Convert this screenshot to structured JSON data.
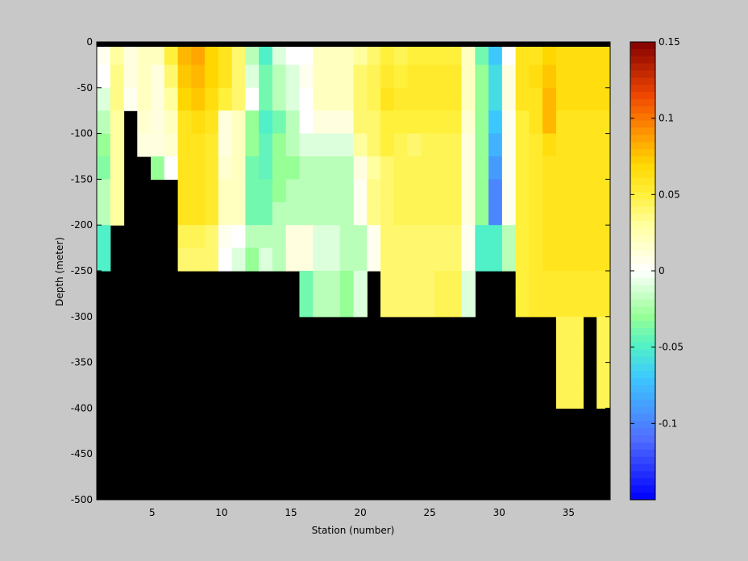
{
  "chart_data": {
    "type": "heatmap",
    "xlabel": "Station (number)",
    "ylabel": "Depth (meter)",
    "xlim": [
      1,
      38
    ],
    "ylim": [
      -500,
      0
    ],
    "x_ticks": [
      5,
      10,
      15,
      20,
      25,
      30,
      35
    ],
    "y_ticks": [
      0,
      -50,
      -100,
      -150,
      -200,
      -250,
      -300,
      -350,
      -400,
      -450,
      -500
    ],
    "colorbar": {
      "range": [
        -0.15,
        0.15
      ],
      "ticks": [
        0.15,
        0.1,
        0.05,
        0,
        -0.05,
        -0.1
      ],
      "tick_labels": [
        "0.15",
        "0.1",
        "0.05",
        "0",
        "-0.05",
        "-0.1"
      ],
      "colormap": "jet-like with white center"
    },
    "missing_color": "#000000",
    "stations": [
      1,
      2,
      3,
      4,
      5,
      6,
      7,
      8,
      9,
      10,
      11,
      12,
      13,
      14,
      15,
      16,
      17,
      18,
      19,
      20,
      21,
      22,
      23,
      24,
      25,
      26,
      27,
      28,
      29,
      30,
      31,
      32,
      33,
      34,
      35,
      36,
      37,
      38
    ],
    "depth_rows": [
      0,
      -25,
      -50,
      -75,
      -100,
      -125,
      -150,
      -175,
      -200,
      -225,
      -250,
      -275,
      -300,
      -325,
      -350,
      -375,
      -400,
      -425,
      -450,
      -475,
      -500
    ],
    "column_profiles": [
      {
        "station": 1,
        "bottom_depth": -250,
        "values": [
          0.005,
          0.0,
          -0.01,
          -0.02,
          -0.03,
          -0.035,
          -0.02,
          -0.02,
          -0.05,
          -0.05
        ]
      },
      {
        "station": 2,
        "bottom_depth": -200,
        "values": [
          0.03,
          0.035,
          0.035,
          0.03,
          0.03,
          0.03,
          0.03,
          0.03
        ]
      },
      {
        "station": 3,
        "bottom_depth": -75,
        "values": [
          0.01,
          0.01,
          0.005
        ]
      },
      {
        "station": 4,
        "bottom_depth": -125,
        "values": [
          0.02,
          0.02,
          0.02,
          0.015,
          0.01
        ]
      },
      {
        "station": 5,
        "bottom_depth": -150,
        "values": [
          0.02,
          0.01,
          0.01,
          0.01,
          0.01,
          -0.03
        ]
      },
      {
        "station": 6,
        "bottom_depth": -150,
        "values": [
          0.05,
          0.04,
          0.03,
          0.02,
          0.015,
          0.0
        ]
      },
      {
        "station": 7,
        "bottom_depth": -250,
        "values": [
          0.08,
          0.075,
          0.07,
          0.06,
          0.06,
          0.06,
          0.06,
          0.06,
          0.045,
          0.04
        ]
      },
      {
        "station": 8,
        "bottom_depth": -250,
        "values": [
          0.085,
          0.08,
          0.075,
          0.065,
          0.06,
          0.06,
          0.06,
          0.06,
          0.045,
          0.04
        ]
      },
      {
        "station": 9,
        "bottom_depth": -250,
        "values": [
          0.07,
          0.07,
          0.065,
          0.06,
          0.055,
          0.055,
          0.055,
          0.055,
          0.04,
          0.04
        ]
      },
      {
        "station": 10,
        "bottom_depth": -250,
        "values": [
          0.06,
          0.06,
          0.05,
          0.01,
          0.01,
          0.015,
          0.02,
          0.02,
          0.005,
          0.0
        ]
      },
      {
        "station": 11,
        "bottom_depth": -250,
        "values": [
          0.04,
          0.04,
          0.04,
          0.02,
          0.02,
          0.02,
          0.02,
          0.02,
          0.0,
          -0.01
        ]
      },
      {
        "station": 12,
        "bottom_depth": -250,
        "values": [
          -0.02,
          -0.01,
          0.0,
          -0.03,
          -0.03,
          -0.04,
          -0.04,
          -0.04,
          -0.02,
          -0.03
        ]
      },
      {
        "station": 13,
        "bottom_depth": -250,
        "values": [
          -0.05,
          -0.04,
          -0.04,
          -0.05,
          -0.045,
          -0.045,
          -0.04,
          -0.04,
          -0.02,
          -0.01
        ]
      },
      {
        "station": 14,
        "bottom_depth": -250,
        "values": [
          -0.01,
          -0.02,
          -0.02,
          -0.04,
          -0.03,
          -0.03,
          -0.03,
          -0.02,
          -0.02,
          -0.02
        ]
      },
      {
        "station": 15,
        "bottom_depth": -250,
        "values": [
          0.0,
          -0.01,
          -0.01,
          -0.02,
          -0.02,
          -0.03,
          -0.02,
          -0.02,
          0.01,
          0.01
        ]
      },
      {
        "station": 16,
        "bottom_depth": -300,
        "values": [
          0.0,
          0.005,
          0.0,
          0.0,
          -0.01,
          -0.02,
          -0.02,
          -0.02,
          0.01,
          0.01,
          -0.04,
          -0.04
        ]
      },
      {
        "station": 17,
        "bottom_depth": -300,
        "values": [
          0.02,
          0.02,
          0.02,
          0.01,
          -0.01,
          -0.02,
          -0.02,
          -0.02,
          -0.01,
          -0.01,
          -0.02,
          -0.02
        ]
      },
      {
        "station": 18,
        "bottom_depth": -300,
        "values": [
          0.02,
          0.02,
          0.02,
          0.01,
          -0.01,
          -0.02,
          -0.02,
          -0.02,
          -0.01,
          -0.01,
          -0.02,
          -0.02
        ]
      },
      {
        "station": 19,
        "bottom_depth": -300,
        "values": [
          0.02,
          0.02,
          0.02,
          0.01,
          -0.01,
          -0.02,
          -0.02,
          -0.02,
          -0.02,
          -0.02,
          -0.03,
          -0.03
        ]
      },
      {
        "station": 20,
        "bottom_depth": -300,
        "values": [
          0.03,
          0.04,
          0.04,
          0.04,
          0.03,
          0.01,
          0.005,
          0.005,
          -0.02,
          -0.02,
          -0.01,
          -0.01
        ]
      },
      {
        "station": 21,
        "bottom_depth": -250,
        "values": [
          0.04,
          0.045,
          0.045,
          0.04,
          0.04,
          0.03,
          0.035,
          0.035,
          0.005,
          0.005
        ]
      },
      {
        "station": 22,
        "bottom_depth": -300,
        "values": [
          0.05,
          0.055,
          0.06,
          0.05,
          0.05,
          0.04,
          0.04,
          0.04,
          0.04,
          0.04,
          0.04,
          0.04
        ]
      },
      {
        "station": 23,
        "bottom_depth": -300,
        "values": [
          0.045,
          0.05,
          0.055,
          0.05,
          0.045,
          0.045,
          0.045,
          0.045,
          0.04,
          0.04,
          0.04,
          0.04
        ]
      },
      {
        "station": 24,
        "bottom_depth": -300,
        "values": [
          0.05,
          0.055,
          0.055,
          0.05,
          0.04,
          0.045,
          0.045,
          0.045,
          0.04,
          0.04,
          0.04,
          0.04
        ]
      },
      {
        "station": 25,
        "bottom_depth": -300,
        "values": [
          0.05,
          0.055,
          0.055,
          0.05,
          0.045,
          0.045,
          0.045,
          0.045,
          0.04,
          0.04,
          0.04,
          0.04
        ]
      },
      {
        "station": 26,
        "bottom_depth": -300,
        "values": [
          0.05,
          0.055,
          0.055,
          0.05,
          0.045,
          0.045,
          0.045,
          0.045,
          0.04,
          0.04,
          0.045,
          0.045
        ]
      },
      {
        "station": 27,
        "bottom_depth": -300,
        "values": [
          0.05,
          0.055,
          0.055,
          0.05,
          0.045,
          0.045,
          0.045,
          0.045,
          0.04,
          0.04,
          0.045,
          0.045
        ]
      },
      {
        "station": 28,
        "bottom_depth": -300,
        "values": [
          0.02,
          0.02,
          0.02,
          0.015,
          0.01,
          0.01,
          0.01,
          0.01,
          0.005,
          0.005,
          -0.01,
          -0.01
        ]
      },
      {
        "station": 29,
        "bottom_depth": -250,
        "values": [
          -0.04,
          -0.03,
          -0.03,
          -0.03,
          -0.03,
          -0.03,
          -0.03,
          -0.03,
          -0.05,
          -0.05
        ]
      },
      {
        "station": 30,
        "bottom_depth": -250,
        "values": [
          -0.07,
          -0.06,
          -0.06,
          -0.07,
          -0.08,
          -0.09,
          -0.1,
          -0.1,
          -0.05,
          -0.05
        ]
      },
      {
        "station": 31,
        "bottom_depth": -250,
        "values": [
          0.0,
          0.01,
          0.01,
          0.005,
          0.005,
          0.005,
          0.005,
          0.005,
          -0.02,
          -0.02
        ]
      },
      {
        "station": 32,
        "bottom_depth": -300,
        "values": [
          0.06,
          0.06,
          0.06,
          0.05,
          0.05,
          0.05,
          0.05,
          0.05,
          0.05,
          0.05,
          0.05,
          0.05
        ]
      },
      {
        "station": 33,
        "bottom_depth": -300,
        "values": [
          0.06,
          0.065,
          0.06,
          0.06,
          0.055,
          0.055,
          0.055,
          0.055,
          0.055,
          0.055,
          0.055,
          0.055
        ]
      },
      {
        "station": 34,
        "bottom_depth": -300,
        "values": [
          0.07,
          0.075,
          0.08,
          0.08,
          0.065,
          0.06,
          0.06,
          0.06,
          0.06,
          0.06,
          0.055,
          0.055
        ]
      },
      {
        "station": 35,
        "bottom_depth": -400,
        "values": [
          0.065,
          0.065,
          0.065,
          0.06,
          0.06,
          0.06,
          0.06,
          0.06,
          0.06,
          0.06,
          0.055,
          0.055,
          0.045,
          0.045,
          0.045,
          0.045
        ]
      },
      {
        "station": 36,
        "bottom_depth": -400,
        "values": [
          0.065,
          0.065,
          0.065,
          0.06,
          0.06,
          0.06,
          0.06,
          0.06,
          0.06,
          0.06,
          0.055,
          0.055,
          0.045,
          0.045,
          0.045,
          0.045
        ]
      },
      {
        "station": 37,
        "bottom_depth": -300,
        "values": [
          0.065,
          0.065,
          0.065,
          0.06,
          0.06,
          0.06,
          0.06,
          0.06,
          0.06,
          0.06,
          0.055,
          0.055
        ]
      },
      {
        "station": 38,
        "bottom_depth": -400,
        "values": [
          0.065,
          0.065,
          0.065,
          0.06,
          0.06,
          0.06,
          0.06,
          0.06,
          0.06,
          0.06,
          0.055,
          0.055,
          0.045,
          0.045,
          0.045,
          0.045
        ]
      }
    ]
  }
}
